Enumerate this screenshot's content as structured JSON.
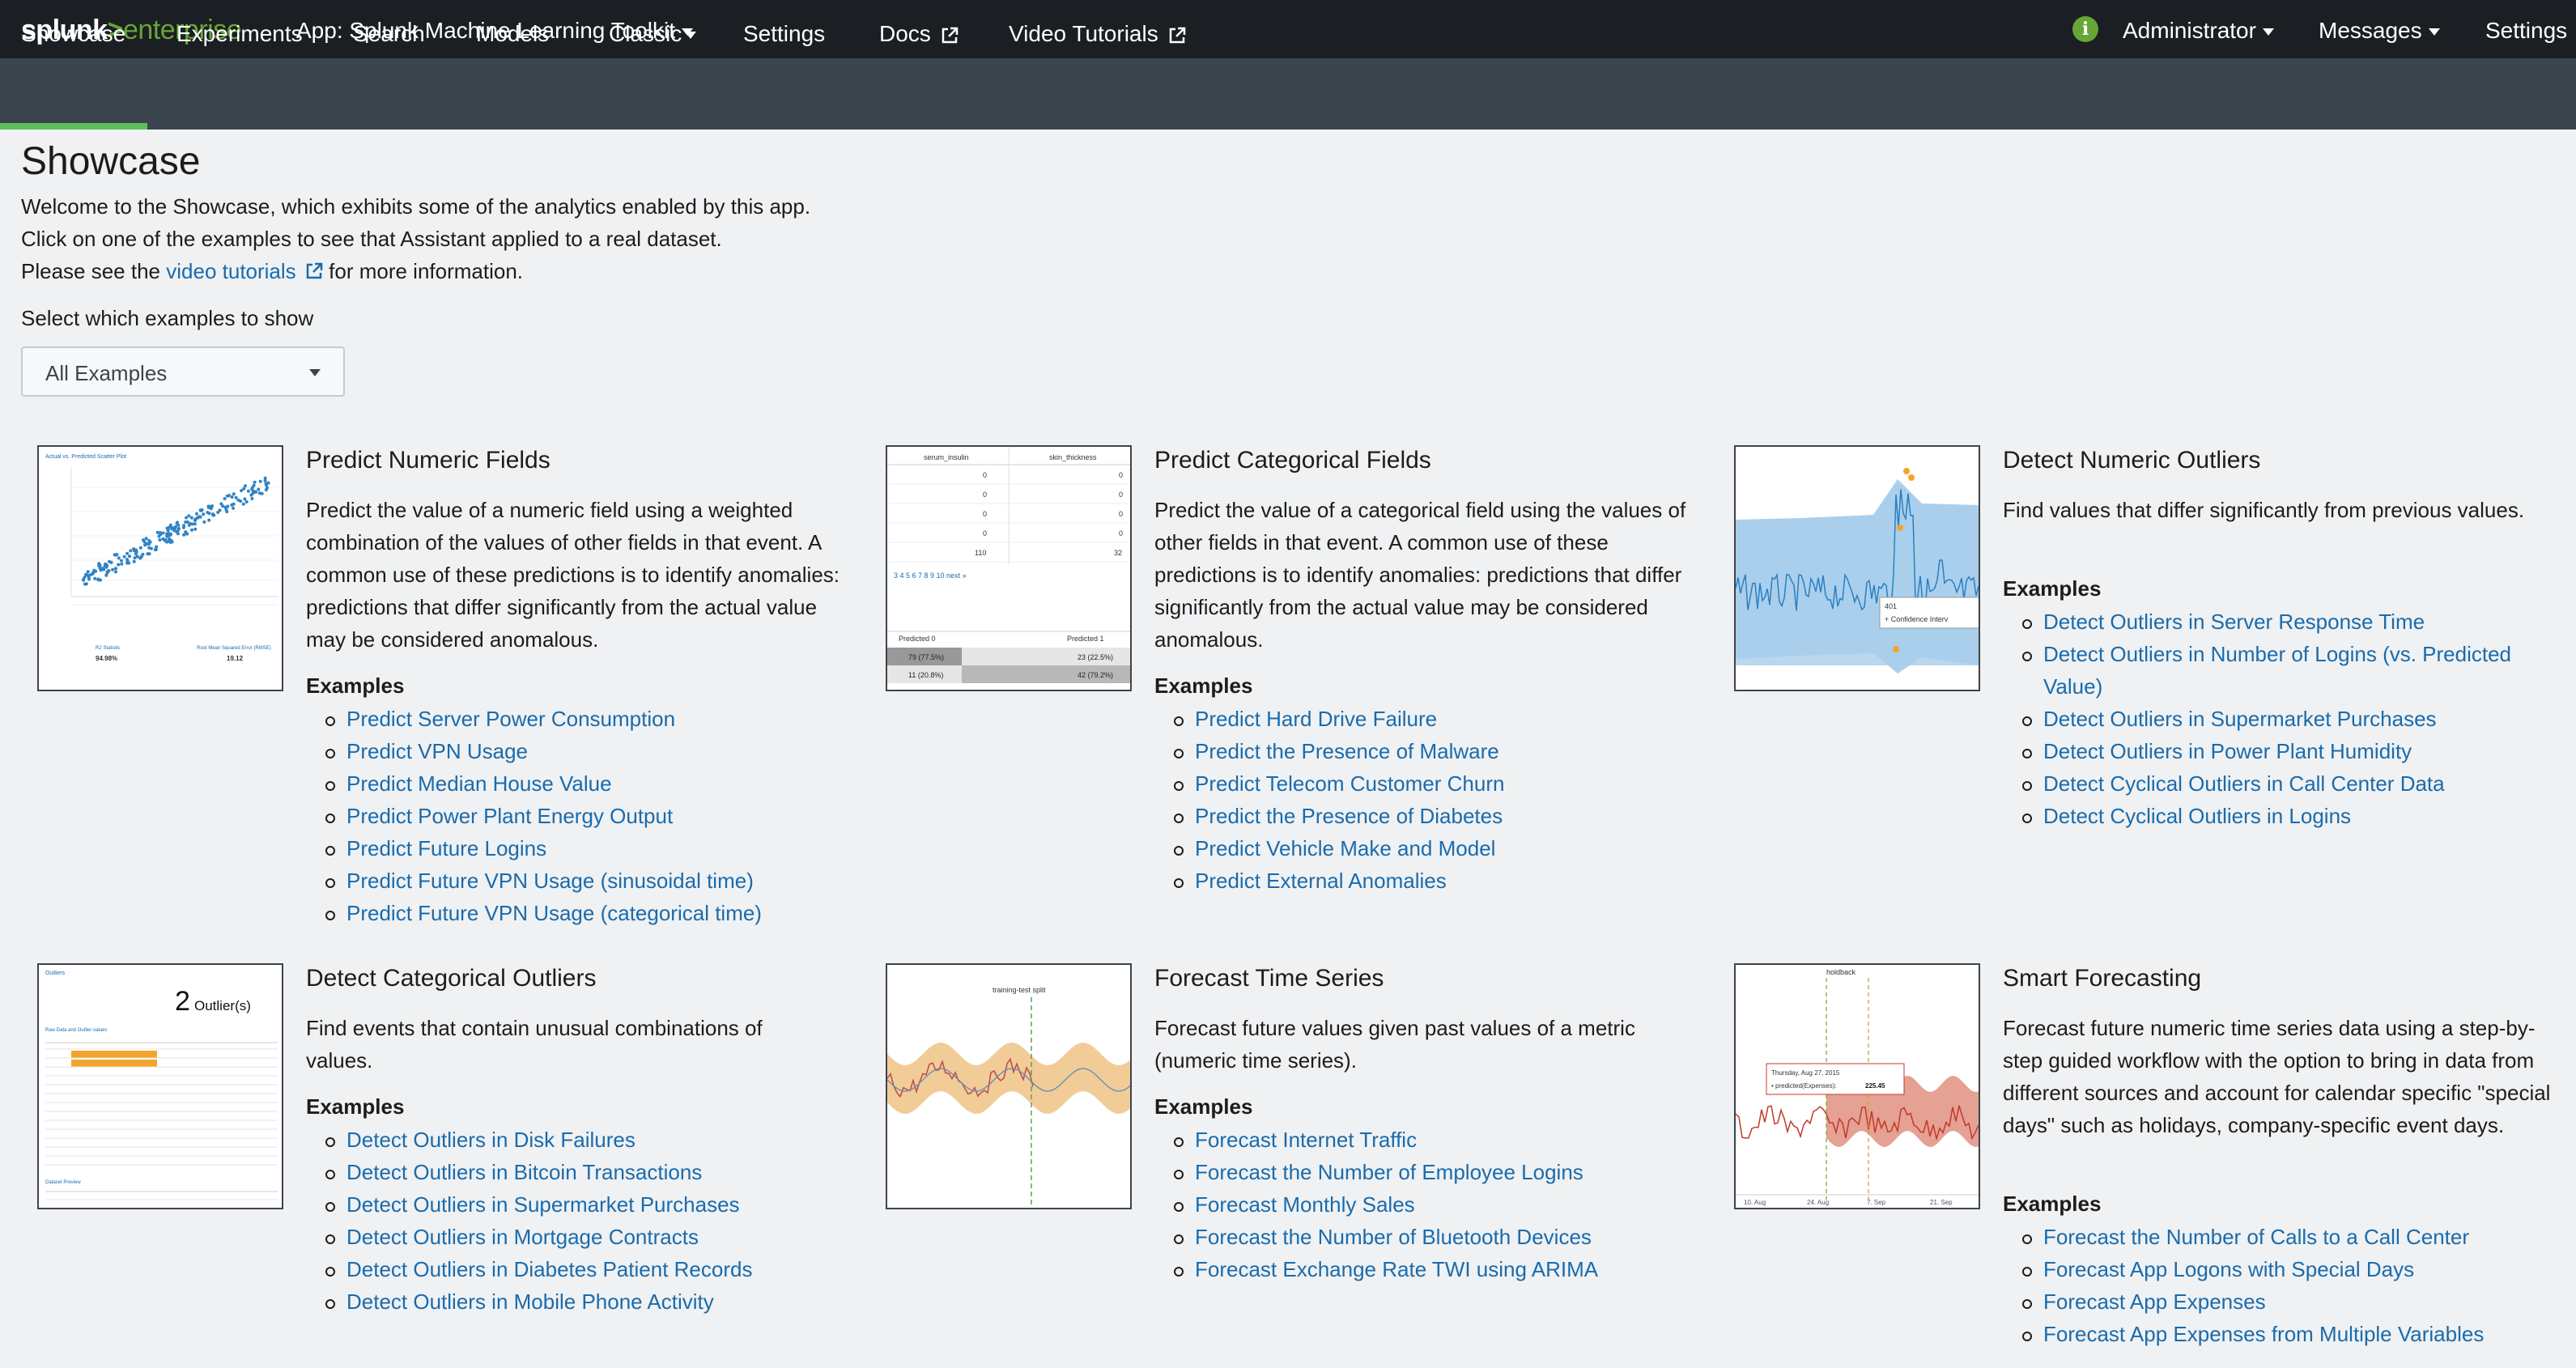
{
  "topbar": {
    "brand_splunk": "splunk",
    "brand_gt": ">",
    "brand_enterprise": "enterprise",
    "app_label": "App: Splunk Machine Learning Toolkit",
    "administrator": "Administrator",
    "messages": "Messages",
    "settings": "Settings",
    "info_glyph": "i"
  },
  "nav": {
    "items": [
      {
        "label": "Showcase"
      },
      {
        "label": "Experiments"
      },
      {
        "label": "Search"
      },
      {
        "label": "Models"
      },
      {
        "label": "Classic"
      },
      {
        "label": "Settings"
      },
      {
        "label": "Docs"
      },
      {
        "label": "Video Tutorials"
      }
    ]
  },
  "header": {
    "title": "Showcase",
    "line1": "Welcome to the Showcase, which exhibits some of the analytics enabled by this app.",
    "line2": "Click on one of the examples to see that Assistant applied to a real dataset.",
    "line3_pre": "Please see the",
    "line3_link": "video tutorials",
    "line3_post": "for more information.",
    "select_label": "Select which examples to show",
    "select_value": "All Examples"
  },
  "cards": [
    {
      "title": "Predict Numeric Fields",
      "desc": "Predict the value of a numeric field using a weighted combination of the values of other fields in that event. A common use of these predictions is to identify anomalies: predictions that differ significantly from the actual value may be considered anomalous.",
      "examples_label": "Examples",
      "examples": [
        "Predict Server Power Consumption",
        "Predict VPN Usage",
        "Predict Median House Value",
        "Predict Power Plant Energy Output",
        "Predict Future Logins",
        "Predict Future VPN Usage (sinusoidal time)",
        "Predict Future VPN Usage (categorical time)"
      ],
      "thumb": {
        "title": "Actual vs. Predicted Scatter Plot",
        "stat1_label": "R2 Statistic",
        "stat1_value": "94.98%",
        "stat2_label": "Root Mean Squared Error (RMSE)",
        "stat2_value": "19.12"
      }
    },
    {
      "title": "Predict Categorical Fields",
      "desc": "Predict the value of a categorical field using the values of other fields in that event. A common use of these predictions is to identify anomalies: predictions that differ significantly from the actual value may be considered anomalous.",
      "examples_label": "Examples",
      "examples": [
        "Predict Hard Drive Failure",
        "Predict the Presence of Malware",
        "Predict Telecom Customer Churn",
        "Predict the Presence of Diabetes",
        "Predict Vehicle Make and Model",
        "Predict External Anomalies"
      ],
      "thumb": {
        "col1": "serum_insulin",
        "col2": "skin_thickness",
        "rows": [
          [
            "0",
            "0"
          ],
          [
            "0",
            "0"
          ],
          [
            "0",
            "0"
          ],
          [
            "0",
            "0"
          ],
          [
            "110",
            "32"
          ]
        ],
        "pager": "3  4  5  6  7  8  9  10  next »",
        "pred0": "Predicted 0",
        "pred1": "Predicted 1",
        "r1c1": "79 (77.5%)",
        "r1c2": "23 (22.5%)",
        "r2c1": "11 (20.8%)",
        "r2c2": "42 (79.2%)"
      }
    },
    {
      "title": "Detect Numeric Outliers",
      "desc": "Find values that differ significantly from previous values.",
      "examples_label": "Examples",
      "examples": [
        "Detect Outliers in Server Response Time",
        "Detect Outliers in Number of Logins (vs. Predicted Value)",
        "Detect Outliers in Supermarket Purchases",
        "Detect Outliers in Power Plant Humidity",
        "Detect Cyclical Outliers in Call Center Data",
        "Detect Cyclical Outliers in Logins"
      ],
      "thumb": {
        "tooltip_value": "401",
        "tooltip_label": "+ Confidence Interv"
      }
    },
    {
      "title": "Detect Categorical Outliers",
      "desc": "Find events that contain unusual combinations of values.",
      "examples_label": "Examples",
      "examples": [
        "Detect Outliers in Disk Failures",
        "Detect Outliers in Bitcoin Transactions",
        "Detect Outliers in Supermarket Purchases",
        "Detect Outliers in Mortgage Contracts",
        "Detect Outliers in Diabetes Patient Records",
        "Detect Outliers in Mobile Phone Activity"
      ],
      "thumb": {
        "count": "2",
        "count_label": "Outlier(s)",
        "header": "Outliers",
        "sub1": "Raw Data and Outlier values",
        "sub2": "Dataset Preview"
      }
    },
    {
      "title": "Forecast Time Series",
      "desc": "Forecast future values given past values of a metric (numeric time series).",
      "examples_label": "Examples",
      "examples": [
        "Forecast Internet Traffic",
        "Forecast the Number of Employee Logins",
        "Forecast Monthly Sales",
        "Forecast the Number of Bluetooth Devices",
        "Forecast Exchange Rate TWI using ARIMA"
      ],
      "thumb": {
        "split_label": "training-test split"
      }
    },
    {
      "title": "Smart Forecasting",
      "desc": "Forecast future numeric time series data using a step-by-step guided workflow with the option to bring in data from different sources and account for calendar specific \"special days\" such as holidays, company-specific event days.",
      "examples_label": "Examples",
      "examples": [
        "Forecast the Number of Calls to a Call Center",
        "Forecast App Logons with Special Days",
        "Forecast App Expenses",
        "Forecast App Expenses from Multiple Variables"
      ],
      "thumb": {
        "holdback": "holdback",
        "tip_date": "Thursday, Aug 27, 2015",
        "tip_label": "• predicted(Expenses):",
        "tip_value": "225.45",
        "ticks": [
          "10. Aug",
          "24. Aug",
          "7. Sep",
          "21. Sep"
        ]
      }
    }
  ],
  "colors": {
    "accent": "#1a6bac",
    "brand_green": "#65a637",
    "nav_bg": "#3c444d",
    "topbar_bg": "#1b1e22"
  }
}
